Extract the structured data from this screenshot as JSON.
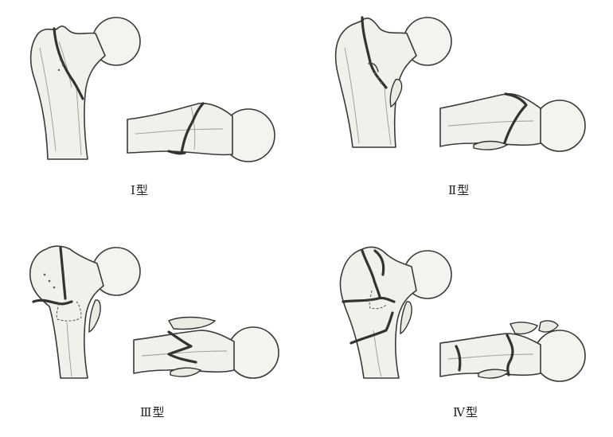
{
  "figure": {
    "panels": [
      {
        "id": "type-1",
        "label": "Ⅰ型"
      },
      {
        "id": "type-2",
        "label": "Ⅱ型"
      },
      {
        "id": "type-3",
        "label": "Ⅲ型"
      },
      {
        "id": "type-4",
        "label": "Ⅳ型"
      }
    ]
  }
}
